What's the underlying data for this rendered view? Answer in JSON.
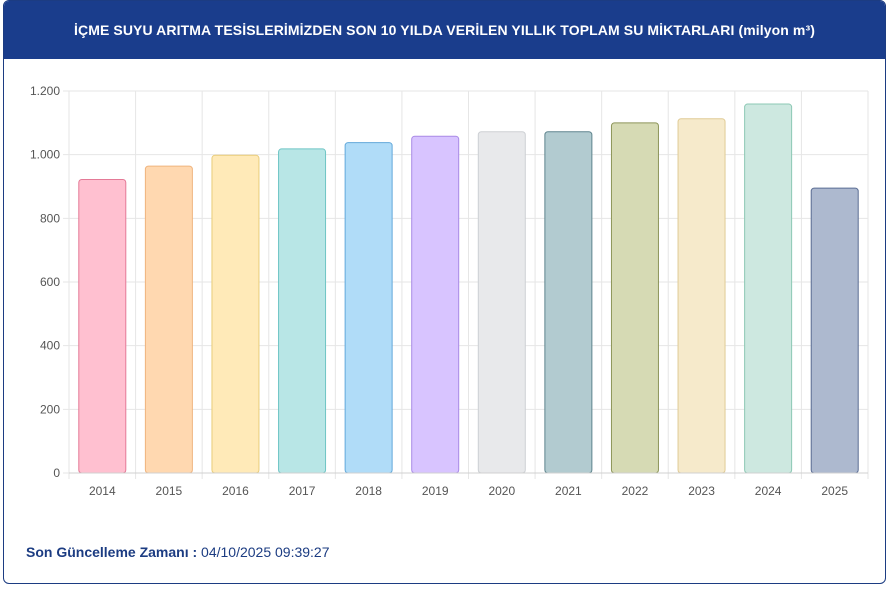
{
  "header": {
    "title": "İÇME SUYU ARITMA TESİSLERİMİZDEN SON 10 YILDA VERİLEN YILLIK TOPLAM SU MİKTARLARI (milyon m³)"
  },
  "footer": {
    "label": "Son Güncelleme Zamanı :",
    "value": "04/10/2025 09:39:27"
  },
  "colors": {
    "header_bg": "#1a3d8c",
    "grid": "#e6e6e6",
    "tick_text": "#555555"
  },
  "chart_data": {
    "type": "bar",
    "title": "",
    "xlabel": "",
    "ylabel": "",
    "ylim": [
      0,
      1200
    ],
    "yticks": [
      0,
      200,
      400,
      600,
      800,
      1000,
      1200
    ],
    "ytick_labels": [
      "0",
      "200",
      "400",
      "600",
      "800",
      "1.000",
      "1.200"
    ],
    "grid": true,
    "categories": [
      "2014",
      "2015",
      "2016",
      "2017",
      "2018",
      "2019",
      "2020",
      "2021",
      "2022",
      "2023",
      "2024",
      "2025"
    ],
    "values": [
      922,
      964,
      998,
      1018,
      1038,
      1058,
      1072,
      1072,
      1100,
      1113,
      1159,
      895
    ],
    "fills": [
      "#ffc0d0",
      "#ffd8b0",
      "#ffeab8",
      "#b8e6e6",
      "#b0dcf8",
      "#d8c4ff",
      "#e8e9eb",
      "#b2cbd0",
      "#d6dab4",
      "#f6eacb",
      "#cde8e0",
      "#adb9cf"
    ],
    "strokes": [
      "#e47a97",
      "#efb47e",
      "#e9cc7a",
      "#6fc5c5",
      "#62a8da",
      "#a98ae6",
      "#cdd0d4",
      "#5e848d",
      "#8d9559",
      "#e0cb95",
      "#8cc8b4",
      "#5a6c93"
    ]
  }
}
